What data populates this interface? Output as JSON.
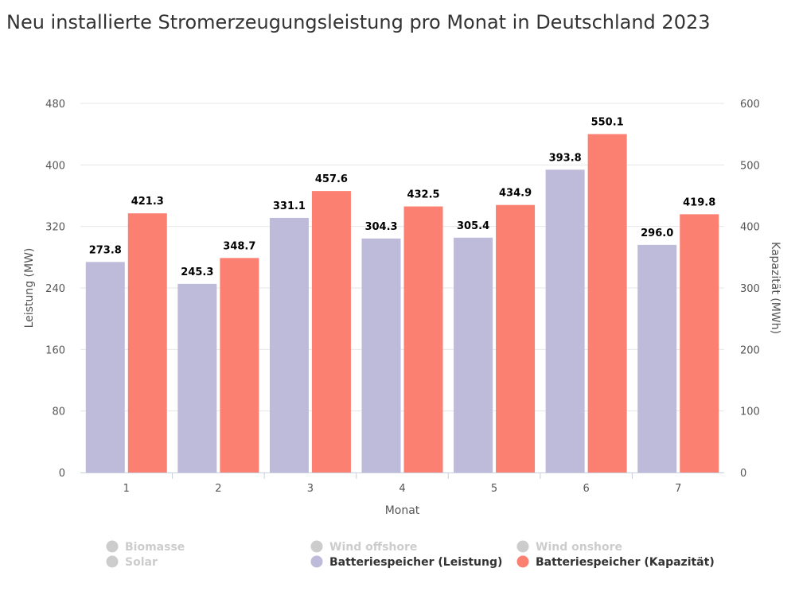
{
  "chart_data": {
    "type": "bar",
    "title": "Neu installierte Stromerzeugungsleistung pro Monat in Deutschland 2023",
    "xlabel": "Monat",
    "ylabel": "Leistung (MW)",
    "y2label": "Kapazität (MWh)",
    "categories": [
      "1",
      "2",
      "3",
      "4",
      "5",
      "6",
      "7"
    ],
    "ylim": [
      0,
      480
    ],
    "y2lim": [
      0,
      600
    ],
    "yticks": [
      "0",
      "80",
      "160",
      "240",
      "320",
      "400",
      "480"
    ],
    "y2ticks": [
      "0",
      "100",
      "200",
      "300",
      "400",
      "500",
      "600"
    ],
    "grid": true,
    "legend_position": "bottom",
    "series": [
      {
        "name": "Batteriespeicher (Leistung)",
        "axis": "left",
        "color": "#bebad9",
        "values": [
          273.8,
          245.3,
          331.1,
          304.3,
          305.4,
          393.8,
          296.0
        ],
        "labels": [
          "273.8",
          "245.3",
          "331.1",
          "304.3",
          "305.4",
          "393.8",
          "296.0"
        ]
      },
      {
        "name": "Batteriespeicher (Kapazität)",
        "axis": "right",
        "color": "#fb8072",
        "values": [
          421.3,
          348.7,
          457.6,
          432.5,
          434.9,
          550.1,
          419.8
        ],
        "labels": [
          "421.3",
          "348.7",
          "457.6",
          "432.5",
          "434.9",
          "550.1",
          "419.8"
        ]
      }
    ],
    "legend": [
      {
        "name": "Biomasse",
        "color": "#cccccc",
        "active": false
      },
      {
        "name": "Wind offshore",
        "color": "#cccccc",
        "active": false
      },
      {
        "name": "Wind onshore",
        "color": "#cccccc",
        "active": false
      },
      {
        "name": "Solar",
        "color": "#cccccc",
        "active": false
      },
      {
        "name": "Batteriespeicher (Leistung)",
        "color": "#bebad9",
        "active": true
      },
      {
        "name": "Batteriespeicher (Kapazität)",
        "color": "#fb8072",
        "active": true
      }
    ]
  }
}
